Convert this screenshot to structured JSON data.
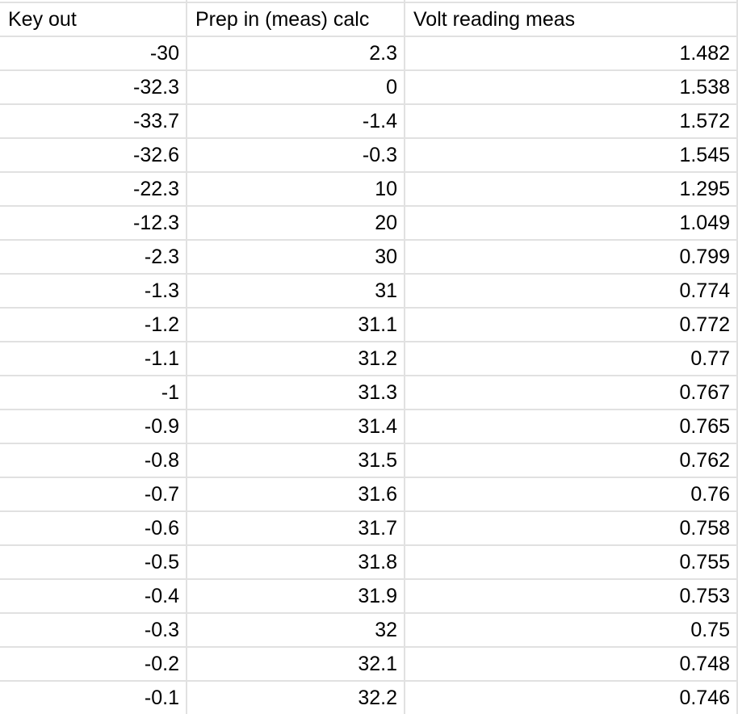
{
  "colors": {
    "gridline": "#e1e1e1",
    "background": "#ffffff",
    "text": "#000000"
  },
  "table": {
    "columns": [
      {
        "label": "Key out"
      },
      {
        "label": "Prep in (meas) calc"
      },
      {
        "label": "Volt reading meas"
      }
    ],
    "rows": [
      [
        "-30",
        "2.3",
        "1.482"
      ],
      [
        "-32.3",
        "0",
        "1.538"
      ],
      [
        "-33.7",
        "-1.4",
        "1.572"
      ],
      [
        "-32.6",
        "-0.3",
        "1.545"
      ],
      [
        "-22.3",
        "10",
        "1.295"
      ],
      [
        "-12.3",
        "20",
        "1.049"
      ],
      [
        "-2.3",
        "30",
        "0.799"
      ],
      [
        "-1.3",
        "31",
        "0.774"
      ],
      [
        "-1.2",
        "31.1",
        "0.772"
      ],
      [
        "-1.1",
        "31.2",
        "0.77"
      ],
      [
        "-1",
        "31.3",
        "0.767"
      ],
      [
        "-0.9",
        "31.4",
        "0.765"
      ],
      [
        "-0.8",
        "31.5",
        "0.762"
      ],
      [
        "-0.7",
        "31.6",
        "0.76"
      ],
      [
        "-0.6",
        "31.7",
        "0.758"
      ],
      [
        "-0.5",
        "31.8",
        "0.755"
      ],
      [
        "-0.4",
        "31.9",
        "0.753"
      ],
      [
        "-0.3",
        "32",
        "0.75"
      ],
      [
        "-0.2",
        "32.1",
        "0.748"
      ],
      [
        "-0.1",
        "32.2",
        "0.746"
      ]
    ]
  }
}
